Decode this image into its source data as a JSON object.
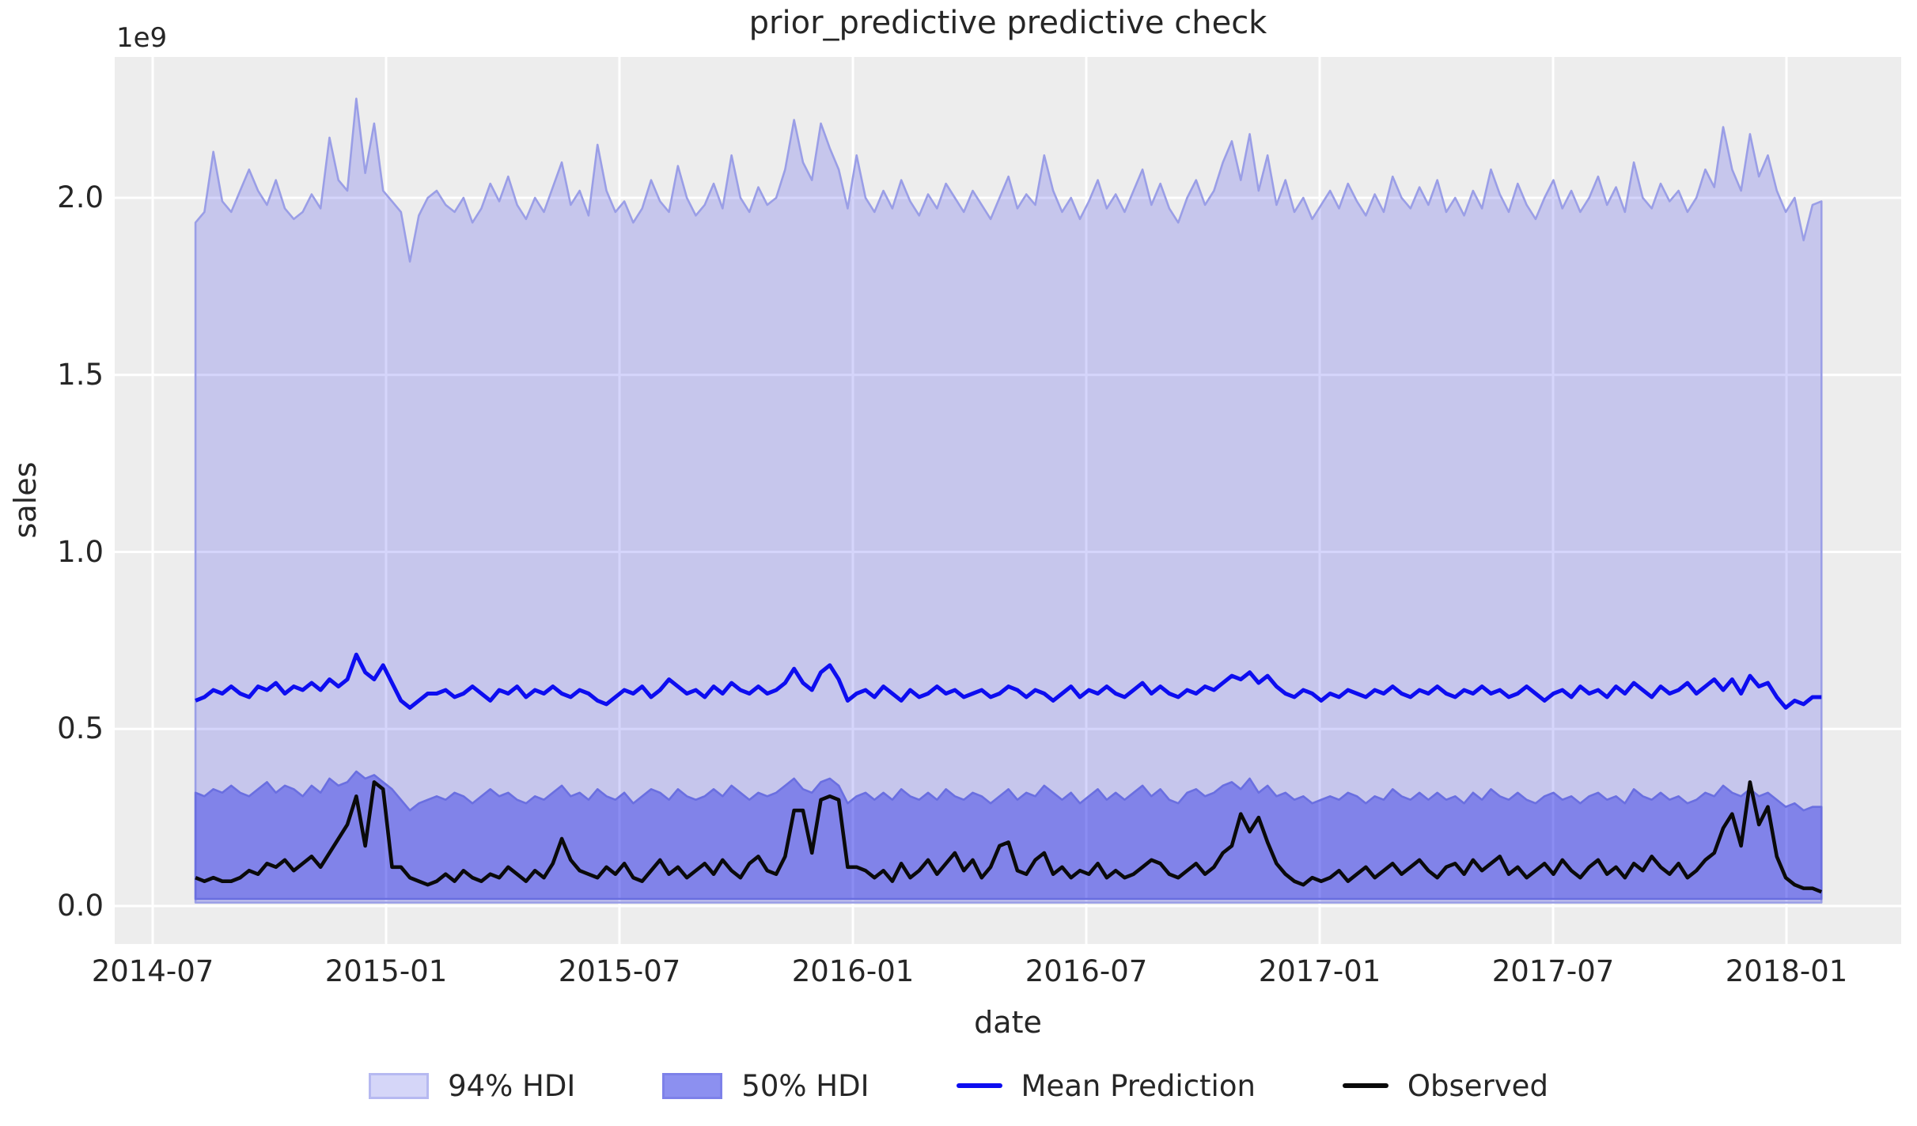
{
  "figure": {
    "background": "#ffffff",
    "axes_background": "#ededed",
    "gridline_color": "#ffffff"
  },
  "chart_data": {
    "type": "line",
    "title": "prior_predictive predictive check",
    "xlabel": "date",
    "ylabel": "sales",
    "y_offset_label": "1e9",
    "x_tick_labels": [
      "2014-07",
      "2015-01",
      "2015-07",
      "2016-01",
      "2016-07",
      "2017-01",
      "2017-07",
      "2018-01"
    ],
    "y_tick_labels": [
      "0.0",
      "0.5",
      "1.0",
      "1.5",
      "2.0"
    ],
    "y_tick_values": [
      0.0,
      0.5,
      1.0,
      1.5,
      2.0
    ],
    "ylim": [
      -0.11,
      2.4
    ],
    "values_unit": "1e9",
    "x_axis_note": "weekly points spanning 2014-08 to 2018-01",
    "x_tick_months": [
      0,
      6,
      12,
      18,
      24,
      30,
      36,
      42
    ],
    "data_start_month": 1.1,
    "data_end_month": 42.9,
    "grid": true,
    "bands": [
      {
        "name": "94% HDI",
        "lower": 0.01,
        "upper": [
          1.93,
          1.96,
          2.13,
          1.99,
          1.96,
          2.02,
          2.08,
          2.02,
          1.98,
          2.05,
          1.97,
          1.94,
          1.96,
          2.01,
          1.97,
          2.17,
          2.05,
          2.02,
          2.28,
          2.07,
          2.21,
          2.02,
          1.99,
          1.96,
          1.82,
          1.95,
          2.0,
          2.02,
          1.98,
          1.96,
          2.0,
          1.93,
          1.97,
          2.04,
          1.99,
          2.06,
          1.98,
          1.94,
          2.0,
          1.96,
          2.03,
          2.1,
          1.98,
          2.02,
          1.95,
          2.15,
          2.02,
          1.96,
          1.99,
          1.93,
          1.97,
          2.05,
          1.99,
          1.96,
          2.09,
          2.0,
          1.95,
          1.98,
          2.04,
          1.97,
          2.12,
          2.0,
          1.96,
          2.03,
          1.98,
          2.0,
          2.08,
          2.22,
          2.1,
          2.05,
          2.21,
          2.14,
          2.08,
          1.97,
          2.12,
          2.0,
          1.96,
          2.02,
          1.97,
          2.05,
          1.99,
          1.95,
          2.01,
          1.97,
          2.04,
          2.0,
          1.96,
          2.02,
          1.98,
          1.94,
          2.0,
          2.06,
          1.97,
          2.01,
          1.98,
          2.12,
          2.02,
          1.96,
          2.0,
          1.94,
          1.99,
          2.05,
          1.97,
          2.01,
          1.96,
          2.02,
          2.08,
          1.98,
          2.04,
          1.97,
          1.93,
          2.0,
          2.05,
          1.98,
          2.02,
          2.1,
          2.16,
          2.05,
          2.18,
          2.02,
          2.12,
          1.98,
          2.05,
          1.96,
          2.0,
          1.94,
          1.98,
          2.02,
          1.97,
          2.04,
          1.99,
          1.95,
          2.01,
          1.96,
          2.06,
          2.0,
          1.97,
          2.03,
          1.98,
          2.05,
          1.96,
          2.0,
          1.95,
          2.02,
          1.97,
          2.08,
          2.01,
          1.96,
          2.04,
          1.98,
          1.94,
          2.0,
          2.05,
          1.97,
          2.02,
          1.96,
          2.0,
          2.06,
          1.98,
          2.03,
          1.96,
          2.1,
          2.0,
          1.97,
          2.04,
          1.99,
          2.02,
          1.96,
          2.0,
          2.08,
          2.03,
          2.2,
          2.08,
          2.02,
          2.18,
          2.06,
          2.12,
          2.02,
          1.96,
          2.0,
          1.88,
          1.98,
          1.99
        ]
      },
      {
        "name": "50% HDI",
        "lower": 0.02,
        "upper": [
          0.32,
          0.31,
          0.33,
          0.32,
          0.34,
          0.32,
          0.31,
          0.33,
          0.35,
          0.32,
          0.34,
          0.33,
          0.31,
          0.34,
          0.32,
          0.36,
          0.34,
          0.35,
          0.38,
          0.36,
          0.37,
          0.35,
          0.33,
          0.3,
          0.27,
          0.29,
          0.3,
          0.31,
          0.3,
          0.32,
          0.31,
          0.29,
          0.31,
          0.33,
          0.31,
          0.32,
          0.3,
          0.29,
          0.31,
          0.3,
          0.32,
          0.34,
          0.31,
          0.32,
          0.3,
          0.33,
          0.31,
          0.3,
          0.32,
          0.29,
          0.31,
          0.33,
          0.32,
          0.3,
          0.33,
          0.31,
          0.3,
          0.31,
          0.33,
          0.31,
          0.34,
          0.32,
          0.3,
          0.32,
          0.31,
          0.32,
          0.34,
          0.36,
          0.33,
          0.32,
          0.35,
          0.36,
          0.34,
          0.29,
          0.31,
          0.32,
          0.3,
          0.32,
          0.3,
          0.33,
          0.31,
          0.3,
          0.32,
          0.3,
          0.33,
          0.31,
          0.3,
          0.32,
          0.31,
          0.29,
          0.31,
          0.33,
          0.3,
          0.32,
          0.31,
          0.34,
          0.32,
          0.3,
          0.32,
          0.29,
          0.31,
          0.33,
          0.3,
          0.32,
          0.3,
          0.32,
          0.34,
          0.31,
          0.33,
          0.3,
          0.29,
          0.32,
          0.33,
          0.31,
          0.32,
          0.34,
          0.35,
          0.33,
          0.36,
          0.32,
          0.34,
          0.31,
          0.32,
          0.3,
          0.31,
          0.29,
          0.3,
          0.31,
          0.3,
          0.32,
          0.31,
          0.29,
          0.31,
          0.3,
          0.33,
          0.31,
          0.3,
          0.32,
          0.3,
          0.32,
          0.3,
          0.31,
          0.29,
          0.32,
          0.3,
          0.33,
          0.31,
          0.3,
          0.32,
          0.3,
          0.29,
          0.31,
          0.32,
          0.3,
          0.31,
          0.29,
          0.31,
          0.32,
          0.3,
          0.31,
          0.29,
          0.33,
          0.31,
          0.3,
          0.32,
          0.3,
          0.31,
          0.29,
          0.3,
          0.32,
          0.31,
          0.34,
          0.32,
          0.31,
          0.33,
          0.31,
          0.32,
          0.3,
          0.28,
          0.29,
          0.27,
          0.28,
          0.28
        ]
      }
    ],
    "series": [
      {
        "name": "Mean Prediction",
        "values": [
          0.58,
          0.59,
          0.61,
          0.6,
          0.62,
          0.6,
          0.59,
          0.62,
          0.61,
          0.63,
          0.6,
          0.62,
          0.61,
          0.63,
          0.61,
          0.64,
          0.62,
          0.64,
          0.71,
          0.66,
          0.64,
          0.68,
          0.63,
          0.58,
          0.56,
          0.58,
          0.6,
          0.6,
          0.61,
          0.59,
          0.6,
          0.62,
          0.6,
          0.58,
          0.61,
          0.6,
          0.62,
          0.59,
          0.61,
          0.6,
          0.62,
          0.6,
          0.59,
          0.61,
          0.6,
          0.58,
          0.57,
          0.59,
          0.61,
          0.6,
          0.62,
          0.59,
          0.61,
          0.64,
          0.62,
          0.6,
          0.61,
          0.59,
          0.62,
          0.6,
          0.63,
          0.61,
          0.6,
          0.62,
          0.6,
          0.61,
          0.63,
          0.67,
          0.63,
          0.61,
          0.66,
          0.68,
          0.64,
          0.58,
          0.6,
          0.61,
          0.59,
          0.62,
          0.6,
          0.58,
          0.61,
          0.59,
          0.6,
          0.62,
          0.6,
          0.61,
          0.59,
          0.6,
          0.61,
          0.59,
          0.6,
          0.62,
          0.61,
          0.59,
          0.61,
          0.6,
          0.58,
          0.6,
          0.62,
          0.59,
          0.61,
          0.6,
          0.62,
          0.6,
          0.59,
          0.61,
          0.63,
          0.6,
          0.62,
          0.6,
          0.59,
          0.61,
          0.6,
          0.62,
          0.61,
          0.63,
          0.65,
          0.64,
          0.66,
          0.63,
          0.65,
          0.62,
          0.6,
          0.59,
          0.61,
          0.6,
          0.58,
          0.6,
          0.59,
          0.61,
          0.6,
          0.59,
          0.61,
          0.6,
          0.62,
          0.6,
          0.59,
          0.61,
          0.6,
          0.62,
          0.6,
          0.59,
          0.61,
          0.6,
          0.62,
          0.6,
          0.61,
          0.59,
          0.6,
          0.62,
          0.6,
          0.58,
          0.6,
          0.61,
          0.59,
          0.62,
          0.6,
          0.61,
          0.59,
          0.62,
          0.6,
          0.63,
          0.61,
          0.59,
          0.62,
          0.6,
          0.61,
          0.63,
          0.6,
          0.62,
          0.64,
          0.61,
          0.64,
          0.6,
          0.65,
          0.62,
          0.63,
          0.59,
          0.56,
          0.58,
          0.57,
          0.59,
          0.59
        ]
      },
      {
        "name": "Observed",
        "values": [
          0.08,
          0.07,
          0.08,
          0.07,
          0.07,
          0.08,
          0.1,
          0.09,
          0.12,
          0.11,
          0.13,
          0.1,
          0.12,
          0.14,
          0.11,
          0.15,
          0.19,
          0.23,
          0.31,
          0.17,
          0.35,
          0.33,
          0.11,
          0.11,
          0.08,
          0.07,
          0.06,
          0.07,
          0.09,
          0.07,
          0.1,
          0.08,
          0.07,
          0.09,
          0.08,
          0.11,
          0.09,
          0.07,
          0.1,
          0.08,
          0.12,
          0.19,
          0.13,
          0.1,
          0.09,
          0.08,
          0.11,
          0.09,
          0.12,
          0.08,
          0.07,
          0.1,
          0.13,
          0.09,
          0.11,
          0.08,
          0.1,
          0.12,
          0.09,
          0.13,
          0.1,
          0.08,
          0.12,
          0.14,
          0.1,
          0.09,
          0.14,
          0.27,
          0.27,
          0.15,
          0.3,
          0.31,
          0.3,
          0.11,
          0.11,
          0.1,
          0.08,
          0.1,
          0.07,
          0.12,
          0.08,
          0.1,
          0.13,
          0.09,
          0.12,
          0.15,
          0.1,
          0.13,
          0.08,
          0.11,
          0.17,
          0.18,
          0.1,
          0.09,
          0.13,
          0.15,
          0.09,
          0.11,
          0.08,
          0.1,
          0.09,
          0.12,
          0.08,
          0.1,
          0.08,
          0.09,
          0.11,
          0.13,
          0.12,
          0.09,
          0.08,
          0.1,
          0.12,
          0.09,
          0.11,
          0.15,
          0.17,
          0.26,
          0.21,
          0.25,
          0.18,
          0.12,
          0.09,
          0.07,
          0.06,
          0.08,
          0.07,
          0.08,
          0.1,
          0.07,
          0.09,
          0.11,
          0.08,
          0.1,
          0.12,
          0.09,
          0.11,
          0.13,
          0.1,
          0.08,
          0.11,
          0.12,
          0.09,
          0.13,
          0.1,
          0.12,
          0.14,
          0.09,
          0.11,
          0.08,
          0.1,
          0.12,
          0.09,
          0.13,
          0.1,
          0.08,
          0.11,
          0.13,
          0.09,
          0.11,
          0.08,
          0.12,
          0.1,
          0.14,
          0.11,
          0.09,
          0.12,
          0.08,
          0.1,
          0.13,
          0.15,
          0.22,
          0.26,
          0.17,
          0.35,
          0.23,
          0.28,
          0.14,
          0.08,
          0.06,
          0.05,
          0.05,
          0.04
        ]
      }
    ],
    "legend": {
      "position": "lower center, outside axes",
      "entries": [
        {
          "label": "94% HDI",
          "kind": "patch"
        },
        {
          "label": "50% HDI",
          "kind": "patch"
        },
        {
          "label": "Mean Prediction",
          "kind": "line"
        },
        {
          "label": "Observed",
          "kind": "line"
        }
      ]
    }
  },
  "colors": {
    "hdi94_fill": "rgba(30,32,235,0.19)",
    "hdi94_edge": "#9a9ee6",
    "hdi50_fill": "rgba(16,20,228,0.376)",
    "hdi50_edge": "#6a6fe0",
    "mean_line": "#0d0df0",
    "observed_line": "#0a0a0a",
    "legend_94_fill": "#d5d6f8",
    "legend_94_edge": "#b6b9f1",
    "legend_50_fill": "#8c90f0",
    "legend_50_edge": "#7d81e9",
    "text": "#262626"
  }
}
